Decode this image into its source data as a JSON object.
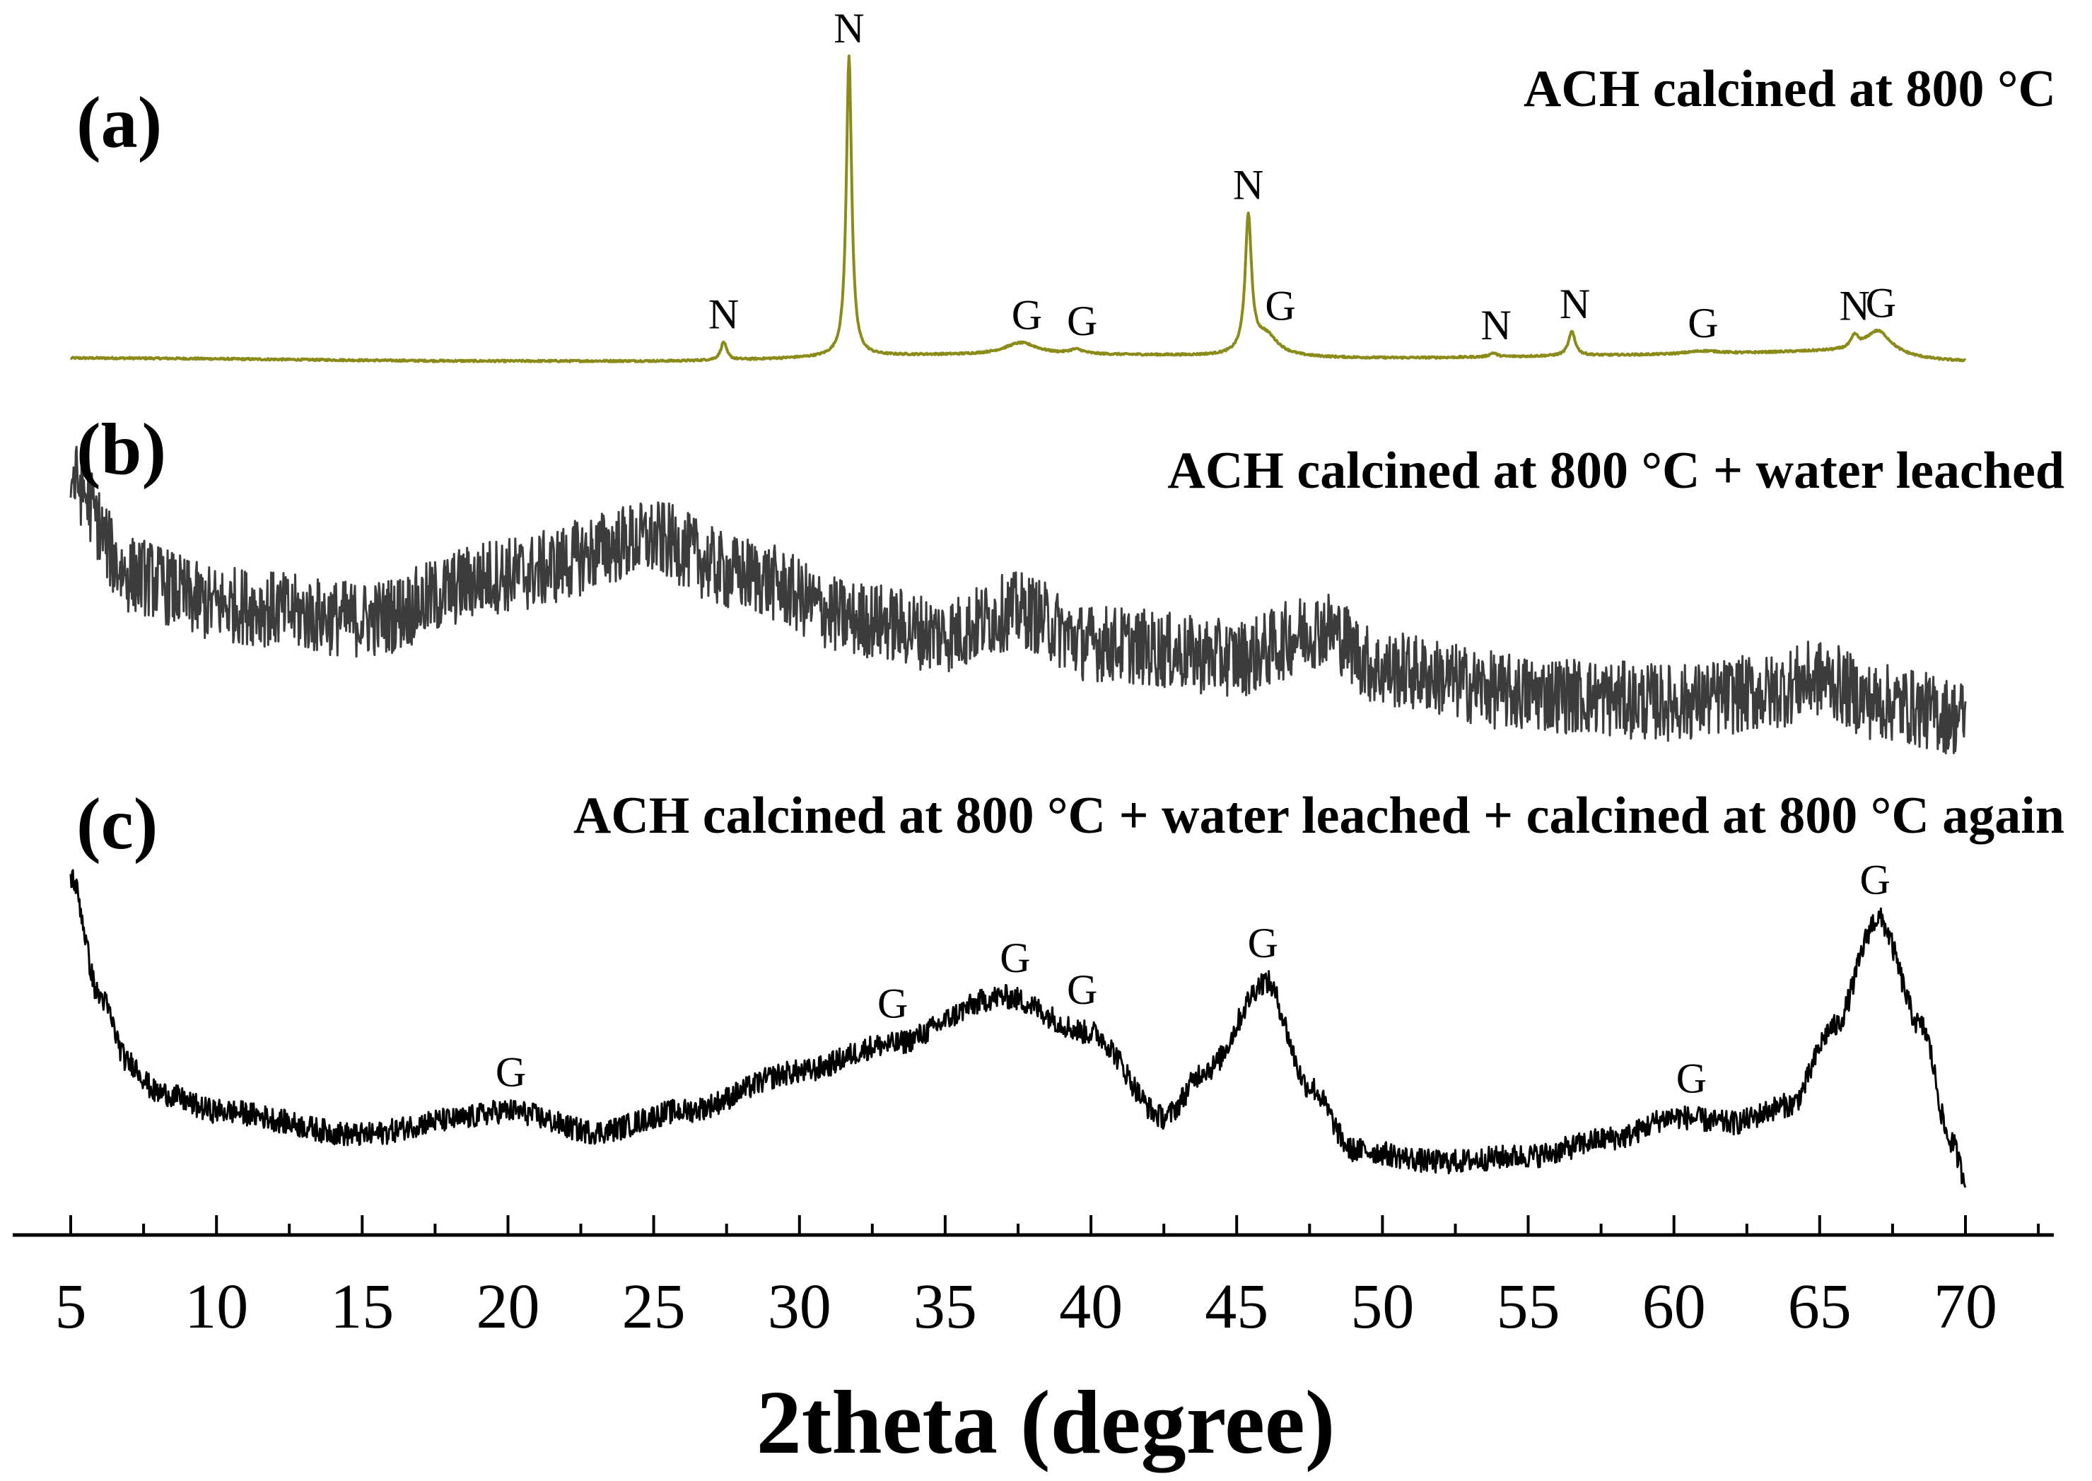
{
  "chart_data": {
    "type": "line",
    "xlabel": "2theta (degree)",
    "xlim": [
      5,
      70
    ],
    "x_ticks": [
      5,
      10,
      15,
      20,
      25,
      30,
      35,
      40,
      45,
      50,
      55,
      60,
      65,
      70
    ],
    "grid": false,
    "panels": [
      {
        "letter": "(a)",
        "title": "ACH calcined at 800 °C",
        "color": "#8b8b1a",
        "baseline": [
          [
            5,
            2
          ],
          [
            20,
            1
          ],
          [
            25,
            1
          ],
          [
            35,
            3
          ],
          [
            40,
            3
          ],
          [
            50,
            2
          ],
          [
            60,
            3
          ],
          [
            65,
            4
          ],
          [
            70,
            1
          ]
        ],
        "peaks": [
          {
            "x": 27.4,
            "h": 6,
            "w": 0.12
          },
          {
            "x": 31.7,
            "h": 100,
            "w": 0.11
          },
          {
            "x": 37.6,
            "h": 4,
            "w": 0.7
          },
          {
            "x": 39.5,
            "h": 1.5,
            "w": 0.3
          },
          {
            "x": 45.4,
            "h": 45,
            "w": 0.13
          },
          {
            "x": 46.0,
            "h": 7,
            "w": 0.5
          },
          {
            "x": 53.8,
            "h": 1.3,
            "w": 0.15
          },
          {
            "x": 56.5,
            "h": 8,
            "w": 0.14
          },
          {
            "x": 61.0,
            "h": 1.2,
            "w": 0.8
          },
          {
            "x": 66.2,
            "h": 4,
            "w": 0.15
          },
          {
            "x": 67.0,
            "h": 8,
            "w": 0.55
          }
        ],
        "noise": 0.3,
        "labels": [
          {
            "text": "N",
            "x": 27.4
          },
          {
            "text": "N",
            "x": 31.7
          },
          {
            "text": "G",
            "x": 37.8
          },
          {
            "text": "G",
            "x": 39.7
          },
          {
            "text": "N",
            "x": 45.4
          },
          {
            "text": "G",
            "x": 46.5
          },
          {
            "text": "N",
            "x": 53.9
          },
          {
            "text": "N",
            "x": 56.6
          },
          {
            "text": "G",
            "x": 61.0
          },
          {
            "text": "N",
            "x": 66.2
          },
          {
            "text": "G",
            "x": 67.1
          }
        ]
      },
      {
        "letter": "(b)",
        "title": "ACH calcined at 800 °C + water leached",
        "color": "#3c3c3c",
        "baseline": [
          [
            5,
            92
          ],
          [
            7,
            60
          ],
          [
            10,
            50
          ],
          [
            15,
            45
          ],
          [
            20,
            60
          ],
          [
            25,
            72
          ],
          [
            28,
            60
          ],
          [
            32,
            45
          ],
          [
            35,
            40
          ],
          [
            37.5,
            48
          ],
          [
            40,
            37
          ],
          [
            45,
            32
          ],
          [
            48,
            42
          ],
          [
            50,
            28
          ],
          [
            55,
            20
          ],
          [
            60,
            17
          ],
          [
            63,
            20
          ],
          [
            65,
            25
          ],
          [
            67,
            17
          ],
          [
            70,
            12
          ]
        ],
        "peaks": [],
        "noise": 13,
        "labels": []
      },
      {
        "letter": "(c)",
        "title": "ACH calcined at 800 °C + water leached + calcined at 800 °C again",
        "color": "#000000",
        "baseline": [
          [
            5,
            100
          ],
          [
            6,
            60
          ],
          [
            7,
            38
          ],
          [
            8,
            28
          ],
          [
            10,
            22
          ],
          [
            15,
            14
          ],
          [
            18,
            19
          ],
          [
            20,
            22
          ],
          [
            23,
            15
          ],
          [
            26,
            22
          ],
          [
            30,
            35
          ],
          [
            33,
            44
          ],
          [
            37,
            60
          ],
          [
            40,
            48
          ],
          [
            42.5,
            20
          ],
          [
            44,
            36
          ],
          [
            46,
            65
          ],
          [
            47.5,
            30
          ],
          [
            49,
            9
          ],
          [
            52,
            5
          ],
          [
            55,
            7
          ],
          [
            58,
            13
          ],
          [
            60,
            20
          ],
          [
            62,
            18
          ],
          [
            64,
            24
          ],
          [
            65.5,
            50
          ],
          [
            67,
            86
          ],
          [
            68.5,
            50
          ],
          [
            69.5,
            12
          ],
          [
            70,
            0
          ]
        ],
        "peaks": [],
        "noise": 4,
        "labels": [
          {
            "text": "G",
            "x": 20.1
          },
          {
            "text": "G",
            "x": 33.2
          },
          {
            "text": "G",
            "x": 37.4
          },
          {
            "text": "G",
            "x": 39.7
          },
          {
            "text": "G",
            "x": 45.9
          },
          {
            "text": "G",
            "x": 60.6
          },
          {
            "text": "G",
            "x": 66.9
          }
        ]
      }
    ]
  }
}
